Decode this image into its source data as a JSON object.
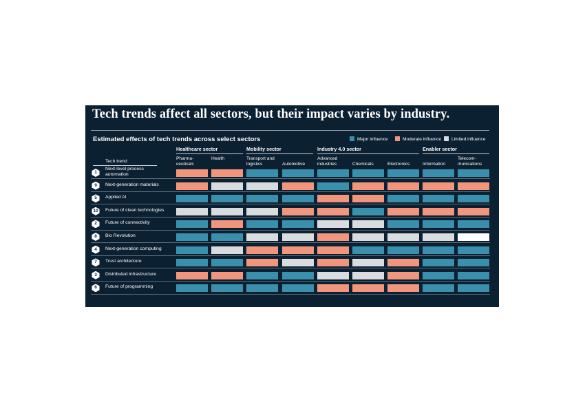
{
  "title": "Tech trends affect all sectors, but their impact varies by industry.",
  "subtitle": "Estimated effects of tech trends across select sectors",
  "legend": [
    {
      "label": "Major influence",
      "color": "#3a8fad",
      "key": "major"
    },
    {
      "label": "Moderate influence",
      "color": "#f1957c",
      "key": "moderate"
    },
    {
      "label": "Limited influence",
      "color": "#d9dcde",
      "key": "limited"
    }
  ],
  "row_header": "Tech trend",
  "sectors": [
    {
      "name": "Healthcare sector"
    },
    {
      "name": "Mobility sector"
    },
    {
      "name": "Industry 4.0 sector"
    },
    {
      "name": "Enabler sector"
    }
  ],
  "columns": [
    {
      "label": "Pharma-\nceuticals",
      "sector": 0
    },
    {
      "label": "Health",
      "sector": 0
    },
    {
      "label": "Transport and\nlogistics",
      "sector": 1
    },
    {
      "label": "Automotive",
      "sector": 1
    },
    {
      "label": "Advanced\nindustries",
      "sector": 2
    },
    {
      "label": "Chemicals",
      "sector": 2
    },
    {
      "label": "Electronics",
      "sector": 2
    },
    {
      "label": "Information",
      "sector": 3
    },
    {
      "label": "Telecom-\nmunications",
      "sector": 3
    }
  ],
  "chart_data": {
    "type": "heatmap",
    "title": "Estimated effects of tech trends across select sectors",
    "legend_position": "top-right",
    "categories": [
      "major",
      "moderate",
      "limited"
    ],
    "rows": [
      {
        "rank": "1",
        "trend": "Next-level process\nautomation",
        "values": [
          "moderate",
          "moderate",
          "major",
          "major",
          "major",
          "major",
          "major",
          "major",
          "major"
        ]
      },
      {
        "rank": "9",
        "trend": "Next-generation materials",
        "values": [
          "moderate",
          "limited",
          "limited",
          "moderate",
          "major",
          "moderate",
          "moderate",
          "moderate",
          "moderate"
        ]
      },
      {
        "rank": "5",
        "trend": "Applied AI",
        "values": [
          "major",
          "major",
          "major",
          "major",
          "moderate",
          "moderate",
          "major",
          "major",
          "major"
        ]
      },
      {
        "rank": "10",
        "trend": "Future of clean technologies",
        "values": [
          "limited",
          "limited",
          "limited",
          "moderate",
          "moderate",
          "major",
          "moderate",
          "moderate",
          "moderate"
        ]
      },
      {
        "rank": "2",
        "trend": "Future of connectivity",
        "values": [
          "major",
          "moderate",
          "major",
          "major",
          "limited",
          "limited",
          "major",
          "major",
          "major"
        ]
      },
      {
        "rank": "8",
        "trend": "Bio Revolution",
        "values": [
          "major",
          "major",
          "limited",
          "limited",
          "moderate",
          "limited",
          "limited",
          "limited",
          "none"
        ]
      },
      {
        "rank": "4",
        "trend": "Next-generation computing",
        "values": [
          "major",
          "limited",
          "moderate",
          "moderate",
          "moderate",
          "major",
          "major",
          "major",
          "major"
        ]
      },
      {
        "rank": "7",
        "trend": "Trust architecture",
        "values": [
          "major",
          "major",
          "moderate",
          "limited",
          "moderate",
          "limited",
          "moderate",
          "major",
          "major"
        ]
      },
      {
        "rank": "3",
        "trend": "Distributed infrastructure",
        "values": [
          "moderate",
          "moderate",
          "major",
          "major",
          "limited",
          "limited",
          "moderate",
          "major",
          "major"
        ]
      },
      {
        "rank": "6",
        "trend": "Future of programming",
        "values": [
          "major",
          "major",
          "major",
          "major",
          "moderate",
          "moderate",
          "moderate",
          "major",
          "major"
        ]
      }
    ]
  },
  "colors": {
    "major": "#3a8fad",
    "moderate": "#f1957c",
    "limited": "#d9dcde",
    "none": "#ffffff",
    "panel": "#0b2031"
  }
}
